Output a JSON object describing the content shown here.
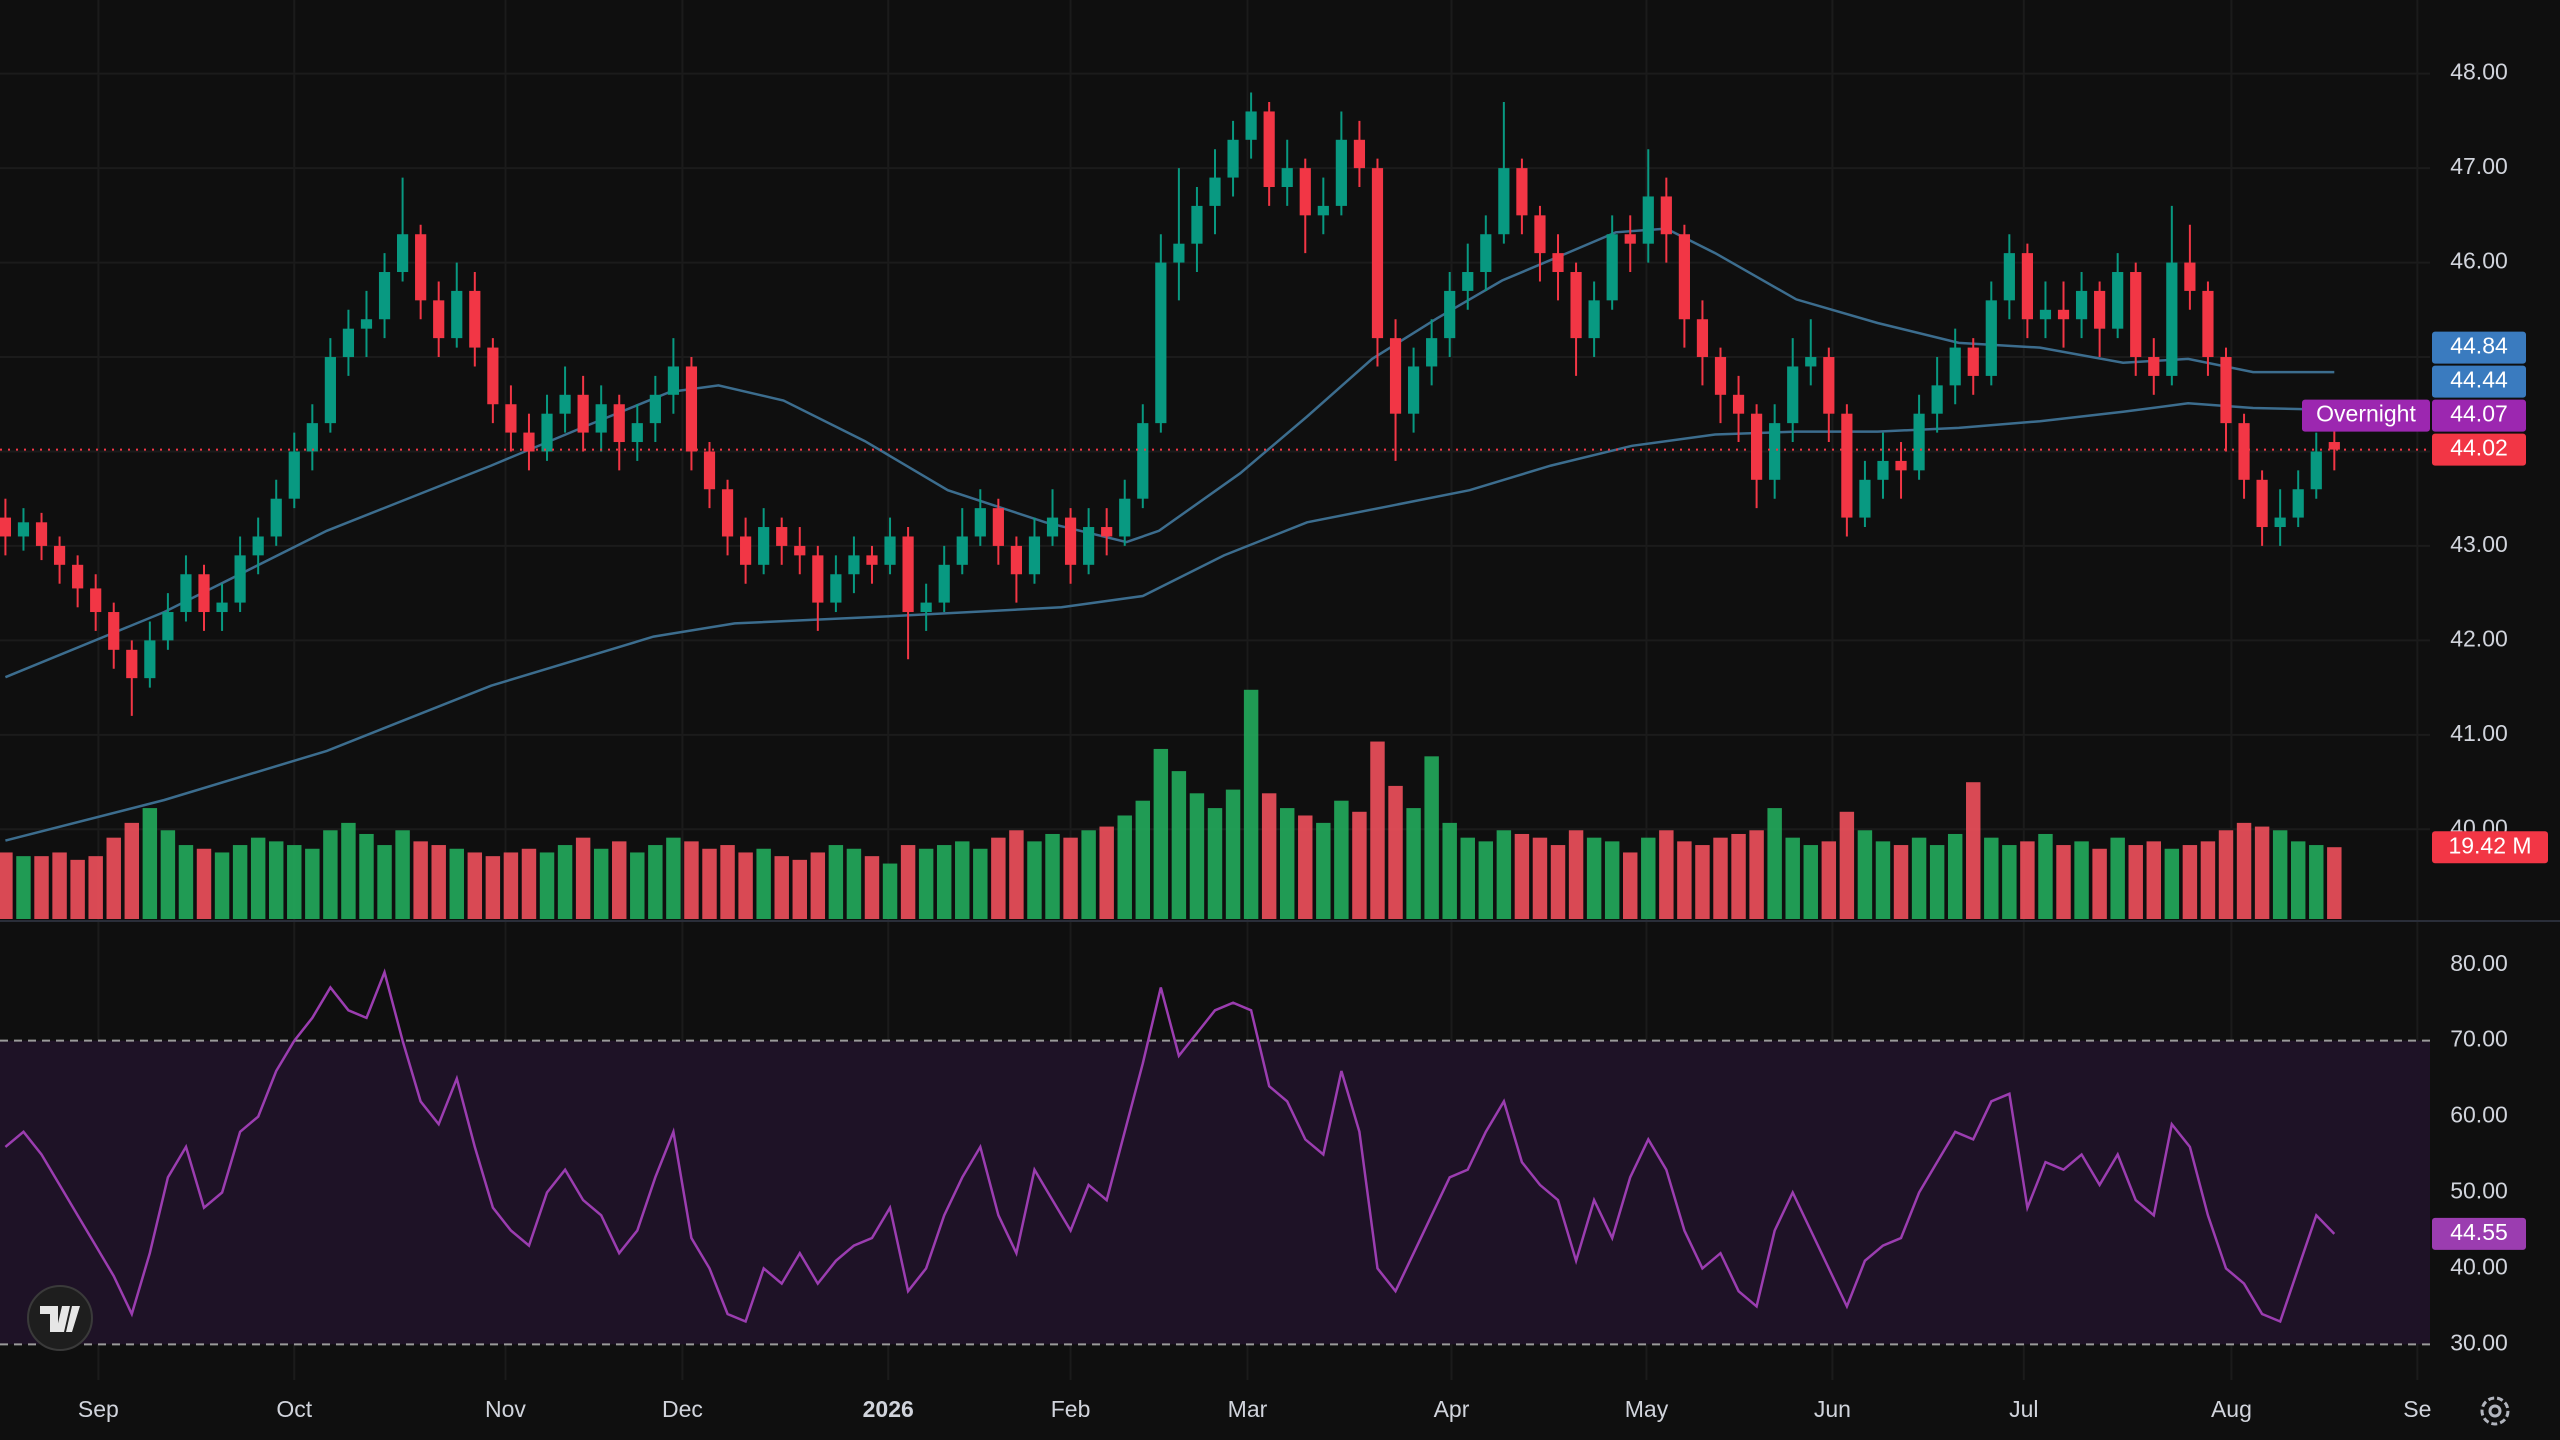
{
  "chart_data": [
    {
      "type": "candlestick",
      "xlim": [
        -0.3,
        134.3
      ],
      "xticks": [
        {
          "value": 5.15,
          "label": "Sep"
        },
        {
          "value": 16.0,
          "label": "Oct"
        },
        {
          "value": 27.7,
          "label": "Nov"
        },
        {
          "value": 37.5,
          "label": "Dec"
        },
        {
          "value": 48.9,
          "label": "2026",
          "bold": true
        },
        {
          "value": 59.0,
          "label": "Feb"
        },
        {
          "value": 68.8,
          "label": "Mar"
        },
        {
          "value": 80.1,
          "label": "Apr"
        },
        {
          "value": 90.9,
          "label": "May"
        },
        {
          "value": 101.2,
          "label": "Jun"
        },
        {
          "value": 111.8,
          "label": "Jul"
        },
        {
          "value": 123.3,
          "label": "Aug"
        },
        {
          "value": 133.6,
          "label": "Se"
        }
      ],
      "ylim": [
        39.05,
        48.78
      ],
      "yticks": [
        {
          "value": 40,
          "label": "40.00"
        },
        {
          "value": 41,
          "label": "41.00"
        },
        {
          "value": 42,
          "label": "42.00"
        },
        {
          "value": 43,
          "label": "43.00"
        },
        {
          "value": 44,
          "label": "44.00"
        },
        {
          "value": 45,
          "label": "45.00"
        },
        {
          "value": 46,
          "label": "46.00"
        },
        {
          "value": 47,
          "label": "47.00"
        },
        {
          "value": 48,
          "label": "48.00"
        }
      ],
      "grid": true,
      "up_color": "#089981",
      "down_color": "#f23645",
      "candles": [
        [
          43.3,
          43.5,
          42.9,
          43.1
        ],
        [
          43.1,
          43.4,
          42.95,
          43.25
        ],
        [
          43.25,
          43.35,
          42.85,
          43.0
        ],
        [
          43.0,
          43.1,
          42.6,
          42.8
        ],
        [
          42.8,
          42.9,
          42.35,
          42.55
        ],
        [
          42.55,
          42.7,
          42.1,
          42.3
        ],
        [
          42.3,
          42.4,
          41.7,
          41.9
        ],
        [
          41.9,
          42.0,
          41.2,
          41.6
        ],
        [
          41.6,
          42.2,
          41.5,
          42.0
        ],
        [
          42.0,
          42.5,
          41.9,
          42.3
        ],
        [
          42.3,
          42.9,
          42.2,
          42.7
        ],
        [
          42.7,
          42.8,
          42.1,
          42.3
        ],
        [
          42.3,
          42.6,
          42.1,
          42.4
        ],
        [
          42.4,
          43.1,
          42.3,
          42.9
        ],
        [
          42.9,
          43.3,
          42.7,
          43.1
        ],
        [
          43.1,
          43.7,
          43.0,
          43.5
        ],
        [
          43.5,
          44.2,
          43.4,
          44.0
        ],
        [
          44.0,
          44.5,
          43.8,
          44.3
        ],
        [
          44.3,
          45.2,
          44.2,
          45.0
        ],
        [
          45.0,
          45.5,
          44.8,
          45.3
        ],
        [
          45.3,
          45.7,
          45.0,
          45.4
        ],
        [
          45.4,
          46.1,
          45.2,
          45.9
        ],
        [
          45.9,
          46.9,
          45.8,
          46.3
        ],
        [
          46.3,
          46.4,
          45.4,
          45.6
        ],
        [
          45.6,
          45.8,
          45.0,
          45.2
        ],
        [
          45.2,
          46.0,
          45.1,
          45.7
        ],
        [
          45.7,
          45.9,
          44.9,
          45.1
        ],
        [
          45.1,
          45.2,
          44.3,
          44.5
        ],
        [
          44.5,
          44.7,
          44.0,
          44.2
        ],
        [
          44.2,
          44.4,
          43.8,
          44.0
        ],
        [
          44.0,
          44.6,
          43.9,
          44.4
        ],
        [
          44.4,
          44.9,
          44.2,
          44.6
        ],
        [
          44.6,
          44.8,
          44.0,
          44.2
        ],
        [
          44.2,
          44.7,
          44.0,
          44.5
        ],
        [
          44.5,
          44.6,
          43.8,
          44.1
        ],
        [
          44.1,
          44.5,
          43.9,
          44.3
        ],
        [
          44.3,
          44.8,
          44.1,
          44.6
        ],
        [
          44.6,
          45.2,
          44.4,
          44.9
        ],
        [
          44.9,
          45.0,
          43.8,
          44.0
        ],
        [
          44.0,
          44.1,
          43.4,
          43.6
        ],
        [
          43.6,
          43.7,
          42.9,
          43.1
        ],
        [
          43.1,
          43.3,
          42.6,
          42.8
        ],
        [
          42.8,
          43.4,
          42.7,
          43.2
        ],
        [
          43.2,
          43.3,
          42.8,
          43.0
        ],
        [
          43.0,
          43.2,
          42.7,
          42.9
        ],
        [
          42.9,
          43.0,
          42.1,
          42.4
        ],
        [
          42.4,
          42.9,
          42.3,
          42.7
        ],
        [
          42.7,
          43.1,
          42.5,
          42.9
        ],
        [
          42.9,
          43.0,
          42.6,
          42.8
        ],
        [
          42.8,
          43.3,
          42.7,
          43.1
        ],
        [
          43.1,
          43.2,
          41.8,
          42.3
        ],
        [
          42.3,
          42.6,
          42.1,
          42.4
        ],
        [
          42.4,
          43.0,
          42.3,
          42.8
        ],
        [
          42.8,
          43.4,
          42.7,
          43.1
        ],
        [
          43.1,
          43.6,
          43.0,
          43.4
        ],
        [
          43.4,
          43.5,
          42.8,
          43.0
        ],
        [
          43.0,
          43.1,
          42.4,
          42.7
        ],
        [
          42.7,
          43.3,
          42.6,
          43.1
        ],
        [
          43.1,
          43.6,
          43.0,
          43.3
        ],
        [
          43.3,
          43.4,
          42.6,
          42.8
        ],
        [
          42.8,
          43.4,
          42.7,
          43.2
        ],
        [
          43.2,
          43.4,
          42.9,
          43.1
        ],
        [
          43.1,
          43.7,
          43.0,
          43.5
        ],
        [
          43.5,
          44.5,
          43.4,
          44.3
        ],
        [
          44.3,
          46.3,
          44.2,
          46.0
        ],
        [
          46.0,
          47.0,
          45.6,
          46.2
        ],
        [
          46.2,
          46.8,
          45.9,
          46.6
        ],
        [
          46.6,
          47.2,
          46.3,
          46.9
        ],
        [
          46.9,
          47.5,
          46.7,
          47.3
        ],
        [
          47.3,
          47.8,
          47.1,
          47.6
        ],
        [
          47.6,
          47.7,
          46.6,
          46.8
        ],
        [
          46.8,
          47.3,
          46.6,
          47.0
        ],
        [
          47.0,
          47.1,
          46.1,
          46.5
        ],
        [
          46.5,
          46.9,
          46.3,
          46.6
        ],
        [
          46.6,
          47.6,
          46.5,
          47.3
        ],
        [
          47.3,
          47.5,
          46.8,
          47.0
        ],
        [
          47.0,
          47.1,
          44.9,
          45.2
        ],
        [
          45.2,
          45.4,
          43.9,
          44.4
        ],
        [
          44.4,
          45.1,
          44.2,
          44.9
        ],
        [
          44.9,
          45.4,
          44.7,
          45.2
        ],
        [
          45.2,
          45.9,
          45.0,
          45.7
        ],
        [
          45.7,
          46.2,
          45.5,
          45.9
        ],
        [
          45.9,
          46.5,
          45.7,
          46.3
        ],
        [
          46.3,
          47.7,
          46.2,
          47.0
        ],
        [
          47.0,
          47.1,
          46.3,
          46.5
        ],
        [
          46.5,
          46.6,
          45.8,
          46.1
        ],
        [
          46.1,
          46.3,
          45.6,
          45.9
        ],
        [
          45.9,
          46.0,
          44.8,
          45.2
        ],
        [
          45.2,
          45.8,
          45.0,
          45.6
        ],
        [
          45.6,
          46.5,
          45.5,
          46.3
        ],
        [
          46.3,
          46.5,
          45.9,
          46.2
        ],
        [
          46.2,
          47.2,
          46.0,
          46.7
        ],
        [
          46.7,
          46.9,
          46.0,
          46.3
        ],
        [
          46.3,
          46.4,
          45.1,
          45.4
        ],
        [
          45.4,
          45.6,
          44.7,
          45.0
        ],
        [
          45.0,
          45.1,
          44.3,
          44.6
        ],
        [
          44.6,
          44.8,
          44.1,
          44.4
        ],
        [
          44.4,
          44.5,
          43.4,
          43.7
        ],
        [
          43.7,
          44.5,
          43.5,
          44.3
        ],
        [
          44.3,
          45.2,
          44.1,
          44.9
        ],
        [
          44.9,
          45.4,
          44.7,
          45.0
        ],
        [
          45.0,
          45.1,
          44.1,
          44.4
        ],
        [
          44.4,
          44.5,
          43.1,
          43.3
        ],
        [
          43.3,
          43.9,
          43.2,
          43.7
        ],
        [
          43.7,
          44.2,
          43.5,
          43.9
        ],
        [
          43.9,
          44.1,
          43.5,
          43.8
        ],
        [
          43.8,
          44.6,
          43.7,
          44.4
        ],
        [
          44.4,
          45.0,
          44.2,
          44.7
        ],
        [
          44.7,
          45.3,
          44.5,
          45.1
        ],
        [
          45.1,
          45.2,
          44.6,
          44.8
        ],
        [
          44.8,
          45.8,
          44.7,
          45.6
        ],
        [
          45.6,
          46.3,
          45.4,
          46.1
        ],
        [
          46.1,
          46.2,
          45.2,
          45.4
        ],
        [
          45.4,
          45.8,
          45.2,
          45.5
        ],
        [
          45.5,
          45.8,
          45.1,
          45.4
        ],
        [
          45.4,
          45.9,
          45.2,
          45.7
        ],
        [
          45.7,
          45.8,
          45.0,
          45.3
        ],
        [
          45.3,
          46.1,
          45.2,
          45.9
        ],
        [
          45.9,
          46.0,
          44.8,
          45.0
        ],
        [
          45.0,
          45.2,
          44.6,
          44.8
        ],
        [
          44.8,
          46.6,
          44.7,
          46.0
        ],
        [
          46.0,
          46.4,
          45.5,
          45.7
        ],
        [
          45.7,
          45.8,
          44.8,
          45.0
        ],
        [
          45.0,
          45.1,
          44.0,
          44.3
        ],
        [
          44.3,
          44.4,
          43.5,
          43.7
        ],
        [
          43.7,
          43.8,
          43.0,
          43.2
        ],
        [
          43.2,
          43.6,
          43.0,
          43.3
        ],
        [
          43.3,
          43.8,
          43.2,
          43.6
        ],
        [
          43.6,
          44.2,
          43.5,
          44.0
        ],
        [
          44.1,
          44.3,
          43.8,
          44.02
        ]
      ],
      "series": [
        {
          "color": "#3c6d8e",
          "x": [
            0,
            8.8,
            17.8,
            26.9,
            32.3,
            36.8,
            39.5,
            43.1,
            47.6,
            52.2,
            57.6,
            62.1,
            63.9,
            68.4,
            72.1,
            75.7,
            79.3,
            82.9,
            86.5,
            89.2,
            92,
            94.7,
            99.2,
            103.7,
            108.2,
            112.7,
            117.3,
            120.9,
            124.5,
            129
          ],
          "values": [
            41.61,
            42.3,
            43.16,
            43.85,
            44.28,
            44.63,
            44.7,
            44.54,
            44.11,
            43.59,
            43.25,
            43.04,
            43.16,
            43.77,
            44.37,
            44.98,
            45.41,
            45.81,
            46.1,
            46.32,
            46.36,
            46.1,
            45.61,
            45.36,
            45.15,
            45.1,
            44.94,
            44.98,
            44.84,
            44.84
          ]
        },
        {
          "color": "#3c6d8e",
          "x": [
            0,
            8.8,
            17.8,
            26.9,
            35.9,
            40.4,
            49.5,
            58.5,
            63,
            67.5,
            72.1,
            76.6,
            81.1,
            85.6,
            90.1,
            94.7,
            99.2,
            103.7,
            108.2,
            112.7,
            117.3,
            120.9,
            124.5,
            129
          ],
          "values": [
            39.88,
            40.31,
            40.83,
            41.52,
            42.04,
            42.18,
            42.26,
            42.35,
            42.47,
            42.9,
            43.25,
            43.42,
            43.59,
            43.85,
            44.06,
            44.18,
            44.21,
            44.21,
            44.25,
            44.32,
            44.42,
            44.51,
            44.46,
            44.44
          ]
        }
      ],
      "volume": {
        "ylim": [
          0,
          66
        ],
        "up_color": "#22ab5c",
        "down_color": "#f0505c",
        "last_value_label": "19.42 M",
        "values": [
          18,
          17,
          17,
          18,
          16,
          17,
          22,
          26,
          30,
          24,
          20,
          19,
          18,
          20,
          22,
          21,
          20,
          19,
          24,
          26,
          23,
          20,
          24,
          21,
          20,
          19,
          18,
          17,
          18,
          19,
          18,
          20,
          22,
          19,
          21,
          18,
          20,
          22,
          21,
          19,
          20,
          18,
          19,
          17,
          16,
          18,
          20,
          19,
          17,
          15,
          20,
          19,
          20,
          21,
          19,
          22,
          24,
          21,
          23,
          22,
          24,
          25,
          28,
          32,
          46,
          40,
          34,
          30,
          35,
          62,
          34,
          30,
          28,
          26,
          32,
          29,
          48,
          36,
          30,
          44,
          26,
          22,
          21,
          24,
          23,
          22,
          20,
          24,
          22,
          21,
          18,
          22,
          24,
          21,
          20,
          22,
          23,
          24,
          30,
          22,
          20,
          21,
          29,
          24,
          21,
          20,
          22,
          20,
          23,
          37,
          22,
          20,
          21,
          23,
          20,
          21,
          19,
          22,
          20,
          21,
          19,
          20,
          21,
          24,
          26,
          25,
          24,
          21,
          20,
          19.42
        ]
      },
      "price_markers": [
        {
          "value": 44.84,
          "color": "#3a7bbf"
        },
        {
          "value": 44.44,
          "color": "#3a7bbf"
        },
        {
          "name": "Overnight",
          "value": 44.07,
          "color": "#9c27b0"
        },
        {
          "value": 44.02,
          "color": "#f23645",
          "dotted": true
        }
      ]
    },
    {
      "type": "line",
      "ylim": [
        25.3,
        85.5
      ],
      "yticks": [
        {
          "value": 30,
          "label": "30.00"
        },
        {
          "value": 40,
          "label": "40.00"
        },
        {
          "value": 50,
          "label": "50.00"
        },
        {
          "value": 60,
          "label": "60.00"
        },
        {
          "value": 70,
          "label": "70.00"
        },
        {
          "value": 80,
          "label": "80.00"
        }
      ],
      "band": [
        30,
        70
      ],
      "band_color": "#1e1226",
      "color": "#9b3db0",
      "values": [
        56,
        58,
        55,
        51,
        47,
        43,
        39,
        34,
        42,
        52,
        56,
        48,
        50,
        58,
        60,
        66,
        70,
        73,
        77,
        74,
        73,
        79,
        70,
        62,
        59,
        65,
        56,
        48,
        45,
        43,
        50,
        53,
        49,
        47,
        42,
        45,
        52,
        58,
        44,
        40,
        34,
        33,
        40,
        38,
        42,
        38,
        41,
        43,
        44,
        48,
        37,
        40,
        47,
        52,
        56,
        47,
        42,
        53,
        49,
        45,
        51,
        49,
        58,
        67,
        77,
        68,
        71,
        74,
        75,
        74,
        64,
        62,
        57,
        55,
        66,
        58,
        40,
        37,
        42,
        47,
        52,
        53,
        58,
        62,
        54,
        51,
        49,
        41,
        49,
        44,
        52,
        57,
        53,
        45,
        40,
        42,
        37,
        35,
        45,
        50,
        45,
        40,
        35,
        41,
        43,
        44,
        50,
        54,
        58,
        57,
        62,
        63,
        48,
        54,
        53,
        55,
        51,
        55,
        49,
        47,
        59,
        56,
        47,
        40,
        38,
        34,
        33,
        40,
        47,
        44.55
      ]
    }
  ]
}
